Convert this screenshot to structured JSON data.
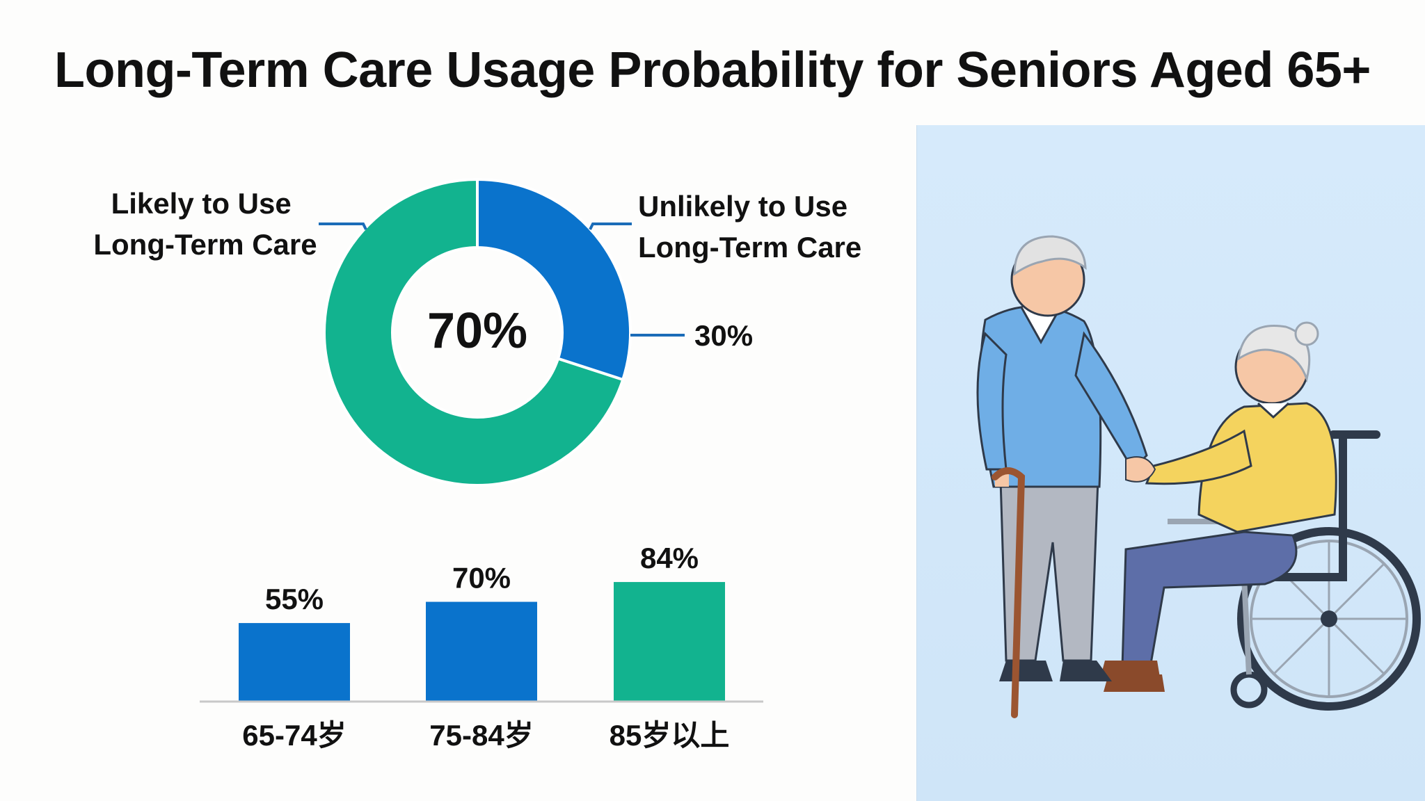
{
  "title": "Long-Term Care Usage Probability for Seniors Aged 65+",
  "colors": {
    "green": "#12b38f",
    "blue": "#0a73cc",
    "axis": "#c8c8c8",
    "text": "#111111"
  },
  "chart_data": [
    {
      "type": "pie",
      "variant": "donut",
      "center_label": "70%",
      "slices": [
        {
          "label": "Likely to Use\nLong-Term Care",
          "value": 70,
          "color": "#12b38f"
        },
        {
          "label": "Unlikely to Use\nLong-Term Care",
          "value": 30,
          "color": "#0a73cc",
          "value_label": "30%"
        }
      ]
    },
    {
      "type": "bar",
      "categories": [
        "65-74岁",
        "75-84岁",
        "85岁以上"
      ],
      "values": [
        55,
        70,
        84
      ],
      "value_labels": [
        "55%",
        "70%",
        "84%"
      ],
      "colors": [
        "#0a73cc",
        "#0a73cc",
        "#12b38f"
      ],
      "ylim": [
        0,
        100
      ],
      "grid": false
    }
  ],
  "illustration": {
    "icon": "elderly-man-with-cane-and-woman-in-wheelchair-illustration"
  }
}
